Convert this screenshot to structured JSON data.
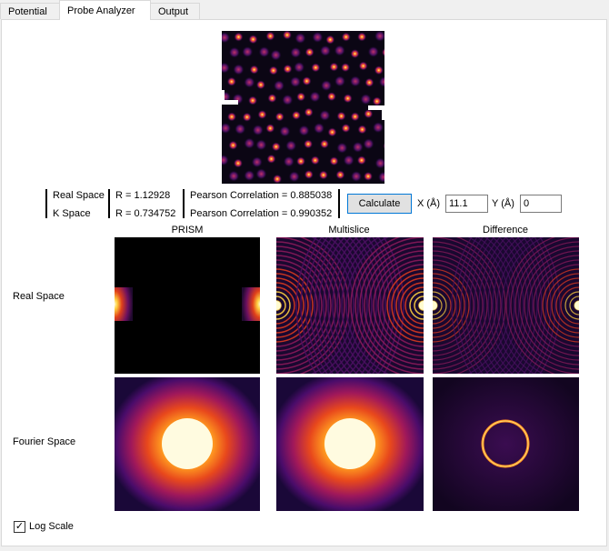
{
  "tabs": [
    {
      "label": "Potential",
      "active": false
    },
    {
      "label": "Probe Analyzer",
      "active": true
    },
    {
      "label": "Output",
      "active": false
    }
  ],
  "stats": {
    "real_label": "Real Space",
    "k_label": "K Space",
    "real_r": "R = 1.12928",
    "k_r": "R = 0.734752",
    "real_pearson": "Pearson Correlation = 0.885038",
    "k_pearson": "Pearson Correlation = 0.990352"
  },
  "controls": {
    "calculate_label": "Calculate",
    "x_label": "X (Å)",
    "x_value": "11.1",
    "y_label": "Y (Å)",
    "y_value": "0"
  },
  "grid": {
    "col_headers": [
      "PRISM",
      "Multislice",
      "Difference"
    ],
    "row_labels": [
      "Real Space",
      "Fourier Space"
    ]
  },
  "log_scale": {
    "label": "Log Scale",
    "checked": true
  }
}
